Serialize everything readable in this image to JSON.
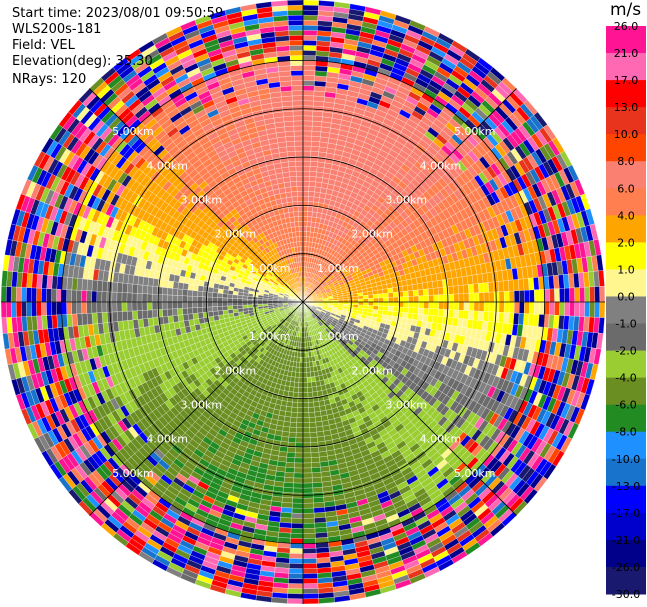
{
  "header": {
    "start_time": "Start time: 2023/08/01 09:50:59",
    "instrument": "WLS200s-181",
    "field": "Field: VEL",
    "elevation": "Elevation(deg): 35.30",
    "nrays": "NRays: 120"
  },
  "colorbar": {
    "unit": "m/s",
    "ticks": [
      "26.0",
      "21.0",
      "17.0",
      "13.0",
      "10.0",
      "8.0",
      "6.0",
      "4.0",
      "2.0",
      "1.0",
      "0.0",
      "-1.0",
      "-2.0",
      "-4.0",
      "-6.0",
      "-8.0",
      "-10.0",
      "-13.0",
      "-17.0",
      "-21.0",
      "-26.0",
      "-30.0"
    ],
    "colors": [
      "#ff1493",
      "#ff69b4",
      "#ff0000",
      "#e8341c",
      "#ff4500",
      "#fa8072",
      "#ff7f50",
      "#ffa500",
      "#ffff00",
      "#fff68f",
      "#808080",
      "#6b6b6b",
      "#9acd32",
      "#6b8e23",
      "#228b22",
      "#1e90ff",
      "#1873cc",
      "#0000ff",
      "#0000cd",
      "#00008b",
      "#191970"
    ]
  },
  "chart_data": {
    "type": "heatmap",
    "subtype": "ppi-polar",
    "field": "VEL",
    "units": "m/s",
    "range_rings_km": [
      1.0,
      2.0,
      3.0,
      4.0,
      5.0
    ],
    "ring_labels": [
      "1.00km",
      "2.00km",
      "3.00km",
      "4.00km",
      "5.00km"
    ],
    "max_range_km": 5.0,
    "nrays": 120,
    "velocity_pattern": {
      "north_sector": [
        3.5,
        7,
        8
      ],
      "south_sector": [
        -4,
        -6,
        -8
      ],
      "west_sector": [
        -1,
        -2,
        -3
      ],
      "east_sector": [
        1.5,
        3,
        5
      ],
      "noise_start_km": 4.0
    }
  }
}
